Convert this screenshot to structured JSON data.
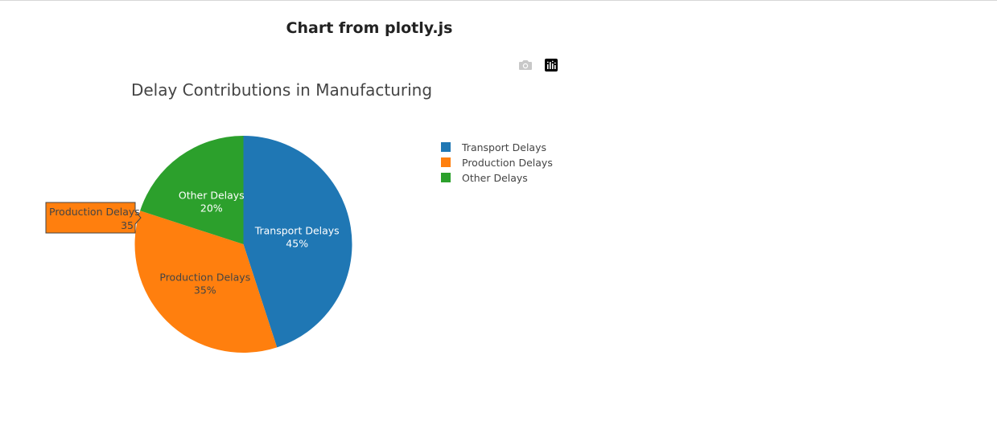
{
  "page": {
    "heading": "Chart from plotly.js"
  },
  "modebar": {
    "icons": [
      "camera-icon",
      "plotly-logo-icon"
    ]
  },
  "chart_data": {
    "type": "pie",
    "title": "Delay Contributions in Manufacturing",
    "labels": [
      "Transport Delays",
      "Production Delays",
      "Other Delays"
    ],
    "values": [
      45,
      35,
      20
    ],
    "percent_labels": [
      "45%",
      "35%",
      "20%"
    ],
    "colors": [
      "#1f77b4",
      "#ff7f0e",
      "#2ca02c"
    ],
    "text_colors": [
      "#ffffff",
      "#444444",
      "#ffffff"
    ],
    "legend_position": "right",
    "hover": {
      "label": "Production Delays",
      "value": "35"
    }
  }
}
